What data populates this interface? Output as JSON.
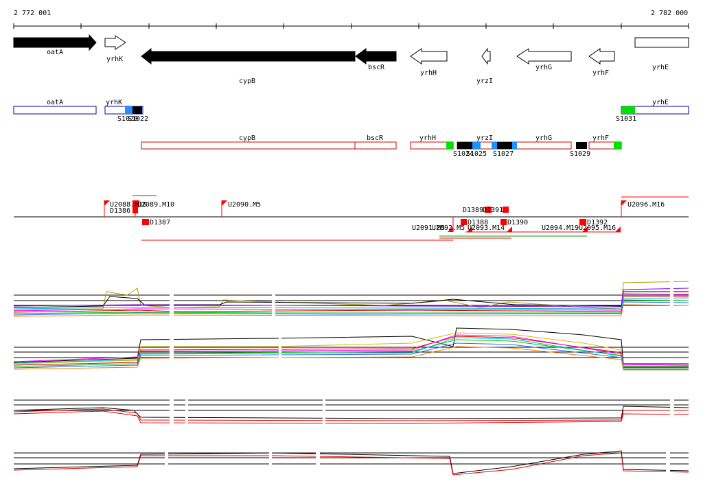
{
  "coords": {
    "start": "2 772 001",
    "end": "2 782 000"
  },
  "genes": [
    {
      "name": "oatA",
      "strand": "+",
      "fill": "#000000"
    },
    {
      "name": "yrhK",
      "strand": "+",
      "fill": "#ffffff"
    },
    {
      "name": "cypB",
      "strand": "-",
      "fill": "#000000"
    },
    {
      "name": "bscR",
      "strand": "-",
      "fill": "#000000"
    },
    {
      "name": "yrhH",
      "strand": "-",
      "fill": "#ffffff"
    },
    {
      "name": "yrzI",
      "strand": "-",
      "fill": "#ffffff"
    },
    {
      "name": "yrhG",
      "strand": "-",
      "fill": "#ffffff"
    },
    {
      "name": "yrhF",
      "strand": "-",
      "fill": "#ffffff"
    },
    {
      "name": "yrhE",
      "strand": "+",
      "fill": "#ffffff"
    }
  ],
  "operon_genes": {
    "forward": [
      "oatA",
      "yrhK",
      "yrhE"
    ],
    "reverse": [
      "cypB",
      "bscR",
      "yrhH",
      "yrzI",
      "yrhG",
      "yrhF"
    ]
  },
  "sites": {
    "forward": [
      "S1020",
      "S1022",
      "S1031"
    ],
    "reverse": [
      "S1024",
      "S1025",
      "S1027",
      "S1029"
    ]
  },
  "features_above": [
    "U2088.M10",
    "D1386",
    "U2089.M10",
    "U2090.M5",
    "D1389",
    "D1391",
    "U2096.M16"
  ],
  "features_below": [
    "D1387",
    "U2091.M5",
    "U2092.M5",
    "D1388",
    "U2093.M14",
    "D1390",
    "U2094.M19",
    "D1392",
    "U2095.M16"
  ],
  "colors": {
    "forward_box": "#0000a0",
    "reverse_box": "#d00000",
    "site_blue": "#1e90ff",
    "site_green": "#00e000",
    "site_black": "#000000",
    "feature_red": "#ff0000"
  },
  "tracks": [
    "expression-profiles-forward",
    "expression-profiles-reverse",
    "summary-forward",
    "summary-reverse"
  ]
}
